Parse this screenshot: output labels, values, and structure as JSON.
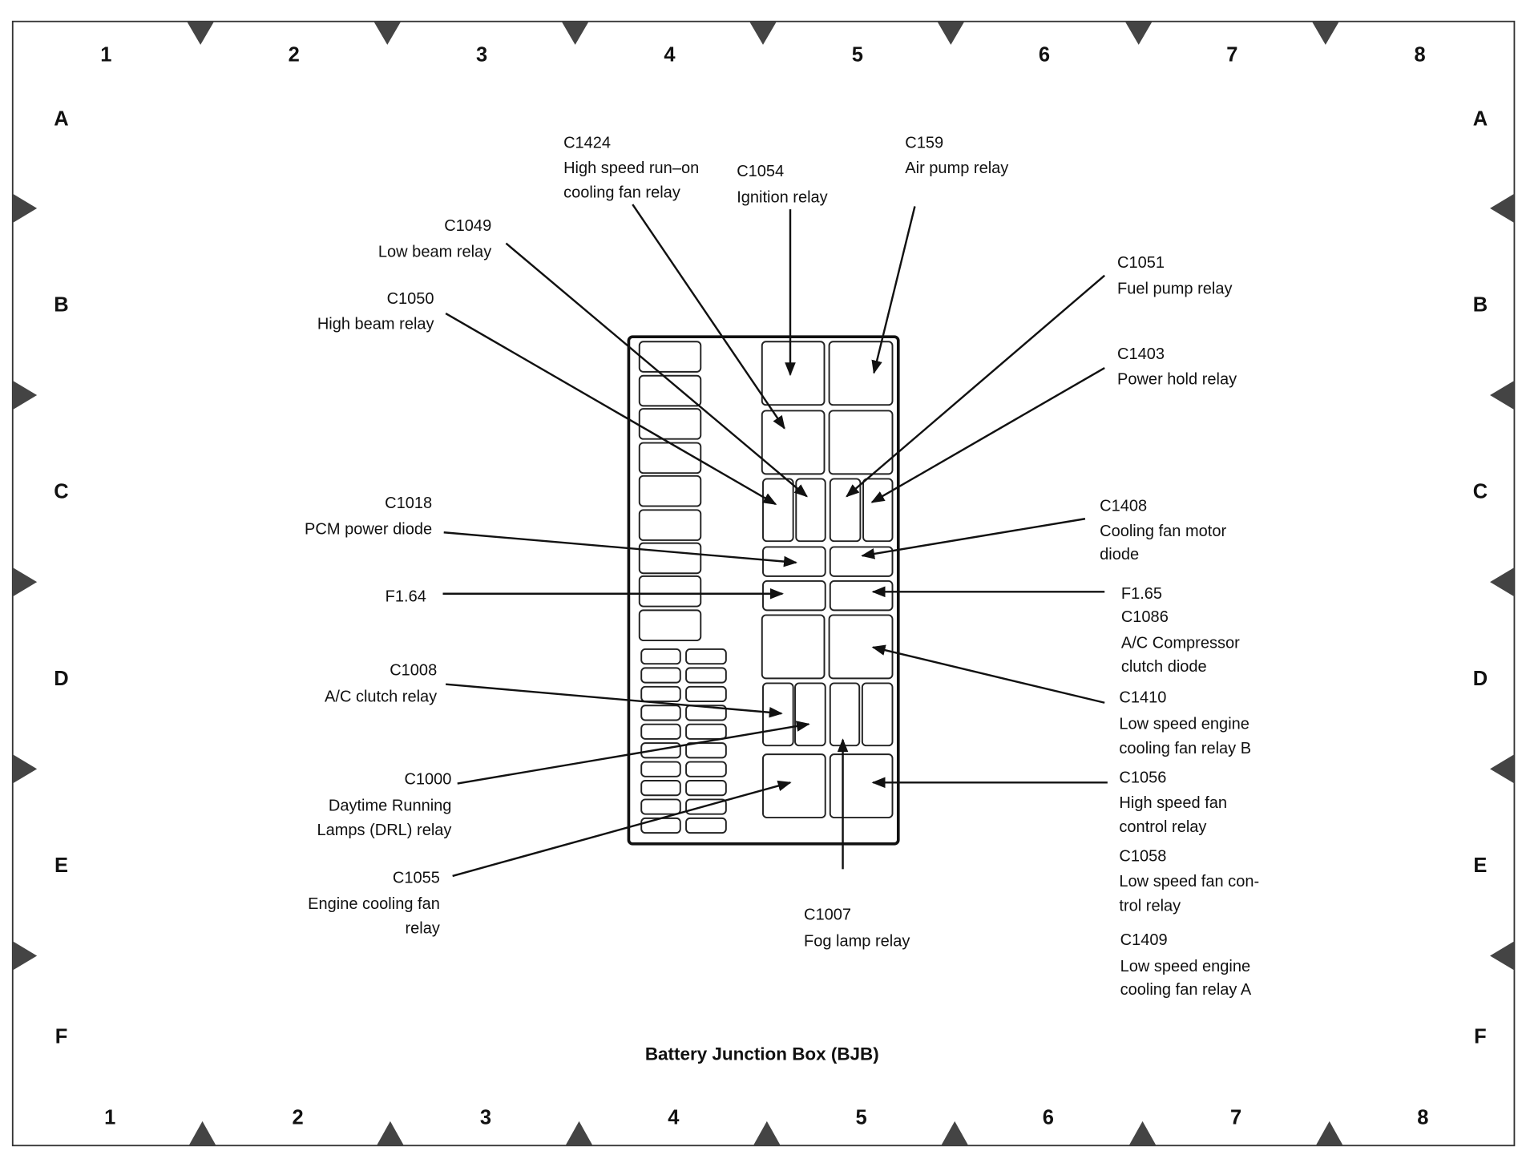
{
  "title": "Battery Junction Box (BJB)",
  "grid": {
    "columns": [
      "1",
      "2",
      "3",
      "4",
      "5",
      "6",
      "7",
      "8"
    ],
    "rows": [
      "A",
      "B",
      "C",
      "D",
      "E",
      "F"
    ]
  },
  "labels": [
    {
      "code": "C1424",
      "lines": [
        "C1424",
        "High speed run–on",
        "cooling fan relay"
      ]
    },
    {
      "code": "C1054",
      "lines": [
        "C1054",
        "Ignition relay"
      ]
    },
    {
      "code": "C159",
      "lines": [
        "C159",
        "Air pump relay"
      ]
    },
    {
      "code": "C1049",
      "lines": [
        "C1049",
        "Low beam relay"
      ]
    },
    {
      "code": "C1050",
      "lines": [
        "C1050",
        "High beam relay"
      ]
    },
    {
      "code": "C1051",
      "lines": [
        "C1051",
        "Fuel pump relay"
      ]
    },
    {
      "code": "C1403",
      "lines": [
        "C1403",
        "Power hold relay"
      ]
    },
    {
      "code": "C1018",
      "lines": [
        "C1018",
        "PCM power diode"
      ]
    },
    {
      "code": "C1408",
      "lines": [
        "C1408",
        "Cooling fan motor",
        "diode"
      ]
    },
    {
      "code": "F1.64",
      "lines": [
        "F1.64"
      ]
    },
    {
      "code": "F1.65",
      "lines": [
        "F1.65",
        "C1086",
        "A/C Compressor",
        "clutch diode"
      ]
    },
    {
      "code": "C1410",
      "lines": [
        "C1410",
        "Low speed engine",
        "cooling fan relay B"
      ]
    },
    {
      "code": "C1008",
      "lines": [
        "C1008",
        "A/C clutch relay"
      ]
    },
    {
      "code": "C1000",
      "lines": [
        "C1000",
        "Daytime Running",
        "Lamps (DRL) relay"
      ]
    },
    {
      "code": "C1055",
      "lines": [
        "C1055",
        "Engine cooling fan",
        "relay"
      ]
    },
    {
      "code": "C1056",
      "lines": [
        "C1056",
        "High speed fan",
        "control relay"
      ]
    },
    {
      "code": "C1058",
      "lines": [
        "C1058",
        "Low speed fan con-",
        "trol relay"
      ]
    },
    {
      "code": "C1409",
      "lines": [
        "C1409",
        "Low speed engine",
        "cooling fan relay A"
      ]
    },
    {
      "code": "C1007",
      "lines": [
        "C1007",
        "Fog lamp relay"
      ]
    }
  ]
}
